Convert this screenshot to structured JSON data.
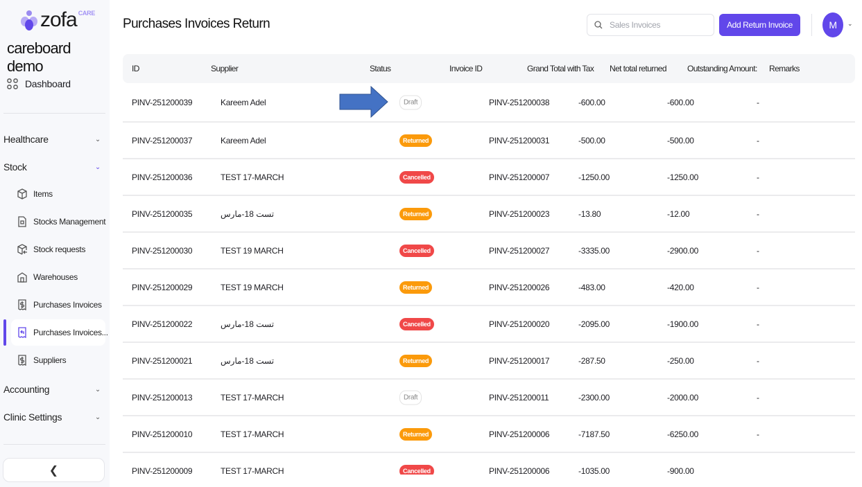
{
  "brand": {
    "logo_text": "zofa",
    "logo_sup": "CARE",
    "org_name": "careboard demo"
  },
  "sidebar": {
    "dashboard": "Dashboard",
    "sections": [
      {
        "label": "Healthcare"
      },
      {
        "label": "Stock"
      },
      {
        "label": "Accounting"
      },
      {
        "label": "Clinic Settings"
      }
    ],
    "stock_items": [
      {
        "label": "Items",
        "icon": "box-icon"
      },
      {
        "label": "Stocks Management",
        "icon": "document-box-icon"
      },
      {
        "label": "Stock requests",
        "icon": "box-return-icon"
      },
      {
        "label": "Warehouses",
        "icon": "warehouse-icon"
      },
      {
        "label": "Purchases Invoices",
        "icon": "invoice-dollar-icon"
      },
      {
        "label": "Purchases Invoices...",
        "icon": "invoice-return-icon",
        "active": true
      },
      {
        "label": "Suppliers",
        "icon": "invoice-dollar-icon"
      }
    ]
  },
  "header": {
    "title": "Purchases Invoices Return",
    "search_placeholder": "Sales Invoices",
    "add_button": "Add Return Invoice",
    "avatar": "M"
  },
  "colors": {
    "accent": "#6147ea",
    "returned": "#fb9a0b",
    "cancelled": "#f04848",
    "arrow": "#4472c4"
  },
  "table": {
    "columns": [
      "ID",
      "Supplier",
      "Status",
      "Invoice ID",
      "Grand Total with Tax",
      "Net total returned",
      "Outstanding Amount:",
      "Remarks"
    ],
    "rows": [
      {
        "id": "PINV-251200039",
        "supplier": "Kareem Adel",
        "status": "Draft",
        "invoice": "PINV-251200038",
        "grand": "-600.00",
        "net": "-600.00",
        "outstanding": "-"
      },
      {
        "id": "PINV-251200037",
        "supplier": "Kareem Adel",
        "status": "Returned",
        "invoice": "PINV-251200031",
        "grand": "-500.00",
        "net": "-500.00",
        "outstanding": "-"
      },
      {
        "id": "PINV-251200036",
        "supplier": "TEST 17-MARCH",
        "status": "Cancelled",
        "invoice": "PINV-251200007",
        "grand": "-1250.00",
        "net": "-1250.00",
        "outstanding": "-"
      },
      {
        "id": "PINV-251200035",
        "supplier": "تست 18-مارس",
        "status": "Returned",
        "invoice": "PINV-251200023",
        "grand": "-13.80",
        "net": "-12.00",
        "outstanding": "-"
      },
      {
        "id": "PINV-251200030",
        "supplier": "TEST 19 MARCH",
        "status": "Cancelled",
        "invoice": "PINV-251200027",
        "grand": "-3335.00",
        "net": "-2900.00",
        "outstanding": "-"
      },
      {
        "id": "PINV-251200029",
        "supplier": "TEST 19 MARCH",
        "status": "Returned",
        "invoice": "PINV-251200026",
        "grand": "-483.00",
        "net": "-420.00",
        "outstanding": "-"
      },
      {
        "id": "PINV-251200022",
        "supplier": "تست 18-مارس",
        "status": "Cancelled",
        "invoice": "PINV-251200020",
        "grand": "-2095.00",
        "net": "-1900.00",
        "outstanding": "-"
      },
      {
        "id": "PINV-251200021",
        "supplier": "تست 18-مارس",
        "status": "Returned",
        "invoice": "PINV-251200017",
        "grand": "-287.50",
        "net": "-250.00",
        "outstanding": "-"
      },
      {
        "id": "PINV-251200013",
        "supplier": "TEST 17-MARCH",
        "status": "Draft",
        "invoice": "PINV-251200011",
        "grand": "-2300.00",
        "net": "-2000.00",
        "outstanding": "-"
      },
      {
        "id": "PINV-251200010",
        "supplier": "TEST 17-MARCH",
        "status": "Returned",
        "invoice": "PINV-251200006",
        "grand": "-7187.50",
        "net": "-6250.00",
        "outstanding": "-"
      },
      {
        "id": "PINV-251200009",
        "supplier": "TEST 17-MARCH",
        "status": "Cancelled",
        "invoice": "PINV-251200006",
        "grand": "-1035.00",
        "net": "-900.00",
        "outstanding": ""
      }
    ]
  }
}
